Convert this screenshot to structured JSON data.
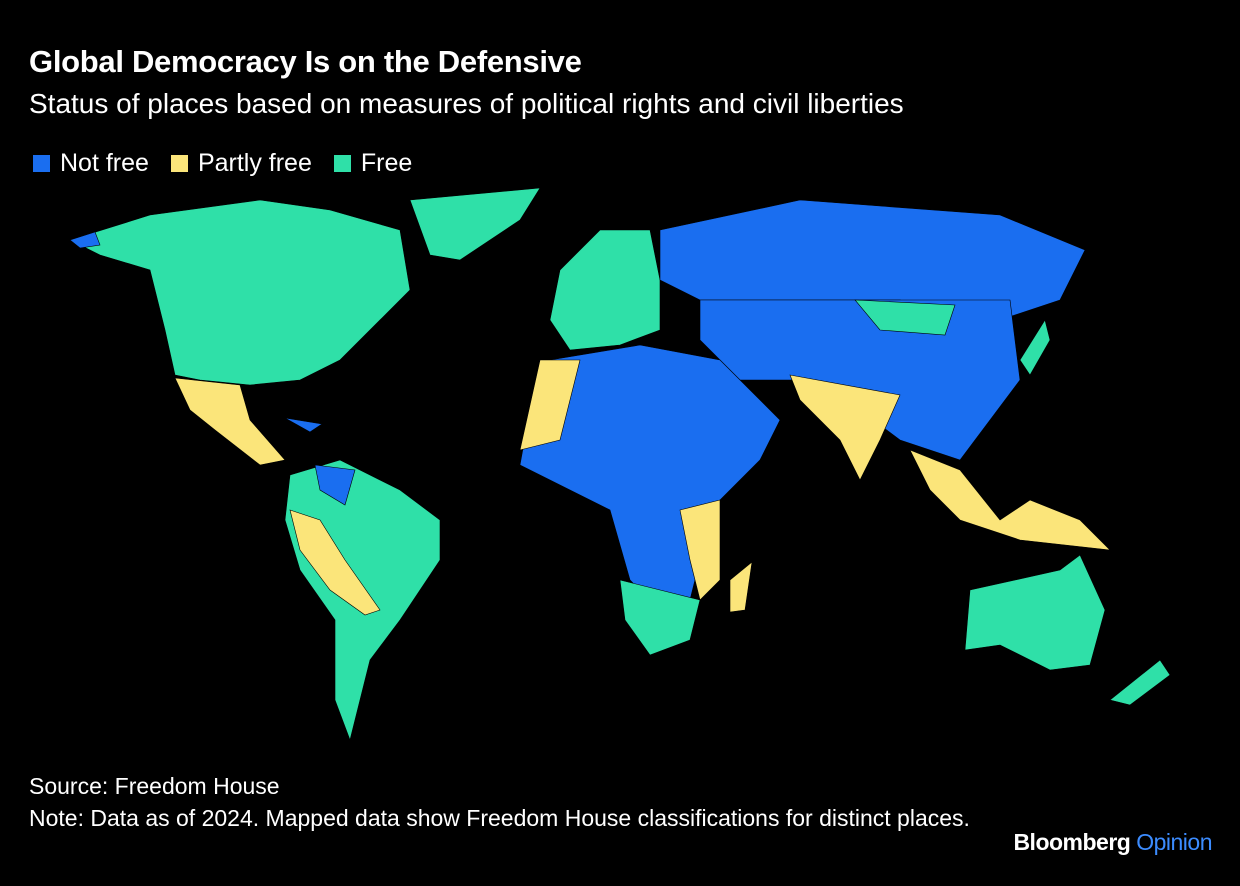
{
  "header": {
    "title": "Global Democracy Is on the Defensive",
    "subtitle": "Status of places based on measures of political rights and civil liberties"
  },
  "legend": [
    {
      "label": "Not free",
      "color": "#1a6ef0"
    },
    {
      "label": "Partly free",
      "color": "#fbe57a"
    },
    {
      "label": "Free",
      "color": "#2fe0a8"
    }
  ],
  "footer": {
    "source": "Source: Freedom House",
    "note": "Note: Data as of 2024. Mapped data show Freedom House classifications for distinct places."
  },
  "brand": {
    "name": "Bloomberg",
    "section": "Opinion"
  }
}
